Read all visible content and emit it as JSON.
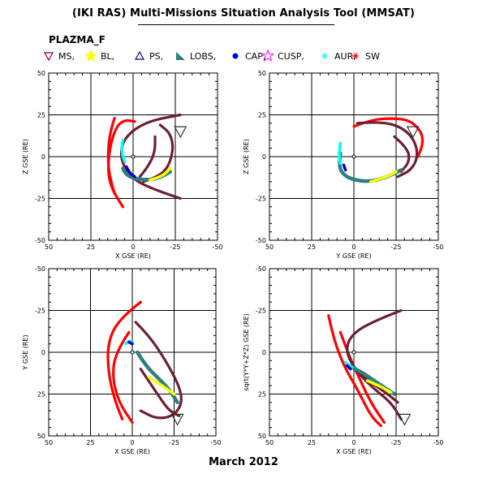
{
  "title": "(IKI RAS) Multi-Missions Situation Analysis Tool (MMSAT)",
  "project": "PLAZMA_F",
  "footer": "March 2012",
  "legend": [
    {
      "label": "MS,",
      "icon": "triangle-down-icon",
      "color": "#800040"
    },
    {
      "label": "BL,",
      "icon": "star-icon",
      "color": "#ffff00"
    },
    {
      "label": "PS,",
      "icon": "triangle-up-icon",
      "color": "#000080"
    },
    {
      "label": "LOBS,",
      "icon": "lobe-triangle-icon",
      "color": "#2e8080"
    },
    {
      "label": "CAP,",
      "icon": "dot-icon",
      "color": "#0000cc"
    },
    {
      "label": "CUSP,",
      "icon": "star-outline-icon",
      "color": "#ff00ff"
    },
    {
      "label": "AUR,",
      "icon": "asterisk-icon",
      "color": "#00ffff"
    },
    {
      "label": "SW",
      "icon": "asterisk-icon",
      "color": "#ff0000"
    }
  ],
  "colors": {
    "magnetosheath": "#6b2033",
    "solar_wind": "#ff0000",
    "lobes": "#2e8080",
    "boundary_layer": "#ffff00",
    "aurora": "#00ffff",
    "cap": "#0000cc",
    "plasma_sheet": "#000080"
  },
  "chart_data": [
    {
      "type": "scatter",
      "panel": "top-left",
      "xlabel": "X GSE (RE)",
      "ylabel": "Z GSE (RE)",
      "xlim": [
        50,
        -50
      ],
      "ylim": [
        -50,
        50
      ],
      "xticks": [
        "50",
        "25",
        "0",
        "-25",
        "-50"
      ],
      "yticks": [
        "50",
        "25",
        "0",
        "-25",
        "-50"
      ],
      "grid": true,
      "series": [
        {
          "name": "SW",
          "color": "#ff0000",
          "points": [
            [
              11,
              -22
            ],
            [
              14,
              -12
            ],
            [
              15,
              0
            ],
            [
              14,
              12
            ],
            [
              12,
              20
            ],
            [
              11,
              23
            ]
          ]
        },
        {
          "name": "SW",
          "color": "#ff0000",
          "points": [
            [
              6,
              -30
            ],
            [
              12,
              -21
            ],
            [
              15,
              -10
            ],
            [
              14,
              5
            ],
            [
              10,
              18
            ],
            [
              5,
              22
            ],
            [
              -1,
              21
            ]
          ]
        },
        {
          "name": "MS",
          "color": "#6b2033",
          "points": [
            [
              -28,
              -25
            ],
            [
              -10,
              -19
            ],
            [
              2,
              -12
            ],
            [
              8,
              0
            ],
            [
              5,
              12
            ],
            [
              -8,
              21
            ],
            [
              -28,
              25
            ]
          ]
        },
        {
          "name": "MS",
          "color": "#6b2033",
          "points": [
            [
              -6,
              -15
            ],
            [
              -15,
              -12
            ],
            [
              -21,
              -6
            ],
            [
              -24,
              5
            ],
            [
              -22,
              14
            ],
            [
              -16,
              19
            ]
          ]
        },
        {
          "name": "MS",
          "color": "#6b2033",
          "points": [
            [
              -4,
              -12
            ],
            [
              -9,
              -6
            ],
            [
              -13,
              3
            ],
            [
              -13,
              12
            ]
          ]
        },
        {
          "name": "LOBS",
          "color": "#2e8080",
          "points": [
            [
              6,
              -7
            ],
            [
              5,
              -10
            ],
            [
              0,
              -13
            ],
            [
              -8,
              -14
            ],
            [
              -15,
              -13
            ],
            [
              -22,
              -9
            ]
          ]
        },
        {
          "name": "BL",
          "color": "#ffff00",
          "points": [
            [
              -10,
              -14
            ],
            [
              -17,
              -12
            ],
            [
              -22,
              -7
            ]
          ]
        },
        {
          "name": "AUR",
          "color": "#00ffff",
          "points": [
            [
              6,
              10
            ],
            [
              7,
              6
            ],
            [
              6,
              0
            ],
            [
              5,
              -3
            ]
          ]
        },
        {
          "name": "CAP",
          "color": "#0000cc",
          "points": [
            [
              4,
              -6
            ],
            [
              2,
              -10
            ],
            [
              -1,
              -12
            ]
          ]
        },
        {
          "name": "MS",
          "color": "#6b2033",
          "points": [
            [
              -28,
              15
            ]
          ]
        }
      ]
    },
    {
      "type": "scatter",
      "panel": "top-right",
      "xlabel": "Y GSE (RE)",
      "ylabel": "Z GSE (RE)",
      "xlim": [
        50,
        -50
      ],
      "ylim": [
        -50,
        50
      ],
      "xticks": [
        "50",
        "25",
        "0",
        "-25",
        "-50"
      ],
      "yticks": [
        "50",
        "25",
        "0",
        "-25",
        "-50"
      ],
      "grid": true,
      "series": [
        {
          "name": "SW",
          "color": "#ff0000",
          "points": [
            [
              0,
              18
            ],
            [
              -10,
              22
            ],
            [
              -22,
              23
            ],
            [
              -33,
              22
            ],
            [
              -40,
              15
            ],
            [
              -41,
              8
            ],
            [
              -38,
              0
            ]
          ]
        },
        {
          "name": "MS",
          "color": "#6b2033",
          "points": [
            [
              -2,
              20
            ],
            [
              -15,
              21
            ],
            [
              -28,
              18
            ],
            [
              -36,
              10
            ],
            [
              -38,
              0
            ],
            [
              -34,
              -8
            ],
            [
              -26,
              -12
            ]
          ]
        },
        {
          "name": "MS",
          "color": "#6b2033",
          "points": [
            [
              -24,
              12
            ],
            [
              -32,
              5
            ],
            [
              -33,
              -3
            ],
            [
              -28,
              -9
            ]
          ]
        },
        {
          "name": "LOBS",
          "color": "#2e8080",
          "points": [
            [
              8,
              2
            ],
            [
              9,
              -6
            ],
            [
              6,
              -11
            ],
            [
              0,
              -14
            ],
            [
              -10,
              -15
            ],
            [
              -20,
              -12
            ],
            [
              -28,
              -8
            ]
          ]
        },
        {
          "name": "BL",
          "color": "#ffff00",
          "points": [
            [
              -10,
              -15
            ],
            [
              -20,
              -12
            ],
            [
              -25,
              -9
            ]
          ]
        },
        {
          "name": "AUR",
          "color": "#00ffff",
          "points": [
            [
              8,
              8
            ],
            [
              9,
              2
            ],
            [
              8,
              -4
            ]
          ]
        },
        {
          "name": "CAP",
          "color": "#0000cc",
          "points": [
            [
              6,
              -5
            ],
            [
              5,
              -8
            ]
          ]
        },
        {
          "name": "MS",
          "color": "#6b2033",
          "points": [
            [
              -35,
              15
            ]
          ]
        }
      ]
    },
    {
      "type": "scatter",
      "panel": "bottom-left",
      "xlabel": "X GSE (RE)",
      "ylabel": "Y GSE (RE)",
      "xlim": [
        50,
        -50
      ],
      "ylim": [
        -50,
        50
      ],
      "xticks": [
        "50",
        "25",
        "0",
        "-25",
        "-50"
      ],
      "yticks": [
        "-50",
        "-25",
        "0",
        "25",
        "50"
      ],
      "grid": true,
      "series": [
        {
          "name": "SW",
          "color": "#ff0000",
          "points": [
            [
              -5,
              -30
            ],
            [
              8,
              -20
            ],
            [
              15,
              -5
            ],
            [
              14,
              15
            ],
            [
              10,
              30
            ],
            [
              6,
              40
            ]
          ]
        },
        {
          "name": "SW",
          "color": "#ff0000",
          "points": [
            [
              2,
              -12
            ],
            [
              10,
              0
            ],
            [
              12,
              15
            ],
            [
              8,
              30
            ],
            [
              0,
              42
            ]
          ]
        },
        {
          "name": "MS",
          "color": "#6b2033",
          "points": [
            [
              -2,
              -18
            ],
            [
              -10,
              -10
            ],
            [
              -20,
              5
            ],
            [
              -28,
              20
            ],
            [
              -30,
              30
            ],
            [
              -25,
              38
            ],
            [
              -15,
              40
            ],
            [
              -5,
              35
            ]
          ]
        },
        {
          "name": "MS",
          "color": "#6b2033",
          "points": [
            [
              -5,
              10
            ],
            [
              -15,
              25
            ],
            [
              -22,
              35
            ],
            [
              -28,
              38
            ]
          ]
        },
        {
          "name": "LOBS",
          "color": "#2e8080",
          "points": [
            [
              -3,
              0
            ],
            [
              -8,
              8
            ],
            [
              -15,
              15
            ],
            [
              -22,
              22
            ],
            [
              -27,
              30
            ]
          ]
        },
        {
          "name": "BL",
          "color": "#ffff00",
          "points": [
            [
              -10,
              15
            ],
            [
              -18,
              20
            ],
            [
              -25,
              25
            ]
          ]
        },
        {
          "name": "AUR",
          "color": "#00ffff",
          "points": [
            [
              4,
              -5
            ],
            [
              2,
              -7
            ],
            [
              0,
              -6
            ]
          ]
        },
        {
          "name": "CAP",
          "color": "#0000cc",
          "points": [
            [
              2,
              -6
            ],
            [
              0,
              -5
            ]
          ]
        },
        {
          "name": "MS",
          "color": "#6b2033",
          "points": [
            [
              -27,
              40
            ]
          ]
        }
      ]
    },
    {
      "type": "scatter",
      "panel": "bottom-right",
      "xlabel": "X GSE (RE)",
      "ylabel": "sqrt(Y*Y+Z*Z) GSE (RE)",
      "xlim": [
        50,
        -50
      ],
      "ylim": [
        -50,
        50
      ],
      "xticks": [
        "50",
        "25",
        "0",
        "-25",
        "-50"
      ],
      "yticks": [
        "-50",
        "-25",
        "0",
        "25",
        "50"
      ],
      "grid": true,
      "series": [
        {
          "name": "SW",
          "color": "#ff0000",
          "points": [
            [
              15,
              -22
            ],
            [
              12,
              -8
            ],
            [
              6,
              8
            ],
            [
              -2,
              22
            ],
            [
              -10,
              38
            ],
            [
              -16,
              44
            ]
          ]
        },
        {
          "name": "SW",
          "color": "#ff0000",
          "points": [
            [
              8,
              -12
            ],
            [
              3,
              2
            ],
            [
              -3,
              15
            ],
            [
              -10,
              30
            ],
            [
              -18,
              42
            ]
          ]
        },
        {
          "name": "MS",
          "color": "#6b2033",
          "points": [
            [
              -28,
              -25
            ],
            [
              -10,
              -18
            ],
            [
              2,
              -10
            ],
            [
              5,
              0
            ],
            [
              -2,
              12
            ],
            [
              -12,
              22
            ],
            [
              -22,
              30
            ],
            [
              -28,
              40
            ]
          ]
        },
        {
          "name": "MS",
          "color": "#6b2033",
          "points": [
            [
              0,
              10
            ],
            [
              -10,
              18
            ],
            [
              -20,
              25
            ],
            [
              -26,
              30
            ]
          ]
        },
        {
          "name": "LOBS",
          "color": "#2e8080",
          "points": [
            [
              3,
              8
            ],
            [
              -5,
              12
            ],
            [
              -12,
              17
            ],
            [
              -18,
              21
            ],
            [
              -24,
              25
            ]
          ]
        },
        {
          "name": "BL",
          "color": "#ffff00",
          "points": [
            [
              -8,
              17
            ],
            [
              -15,
              20
            ],
            [
              -22,
              24
            ]
          ]
        },
        {
          "name": "AUR",
          "color": "#00ffff",
          "points": [
            [
              5,
              6
            ],
            [
              3,
              8
            ],
            [
              1,
              9
            ]
          ]
        },
        {
          "name": "CAP",
          "color": "#0000cc",
          "points": [
            [
              4,
              8
            ],
            [
              2,
              10
            ]
          ]
        },
        {
          "name": "MS",
          "color": "#6b2033",
          "points": [
            [
              -30,
              40
            ]
          ]
        }
      ]
    }
  ]
}
